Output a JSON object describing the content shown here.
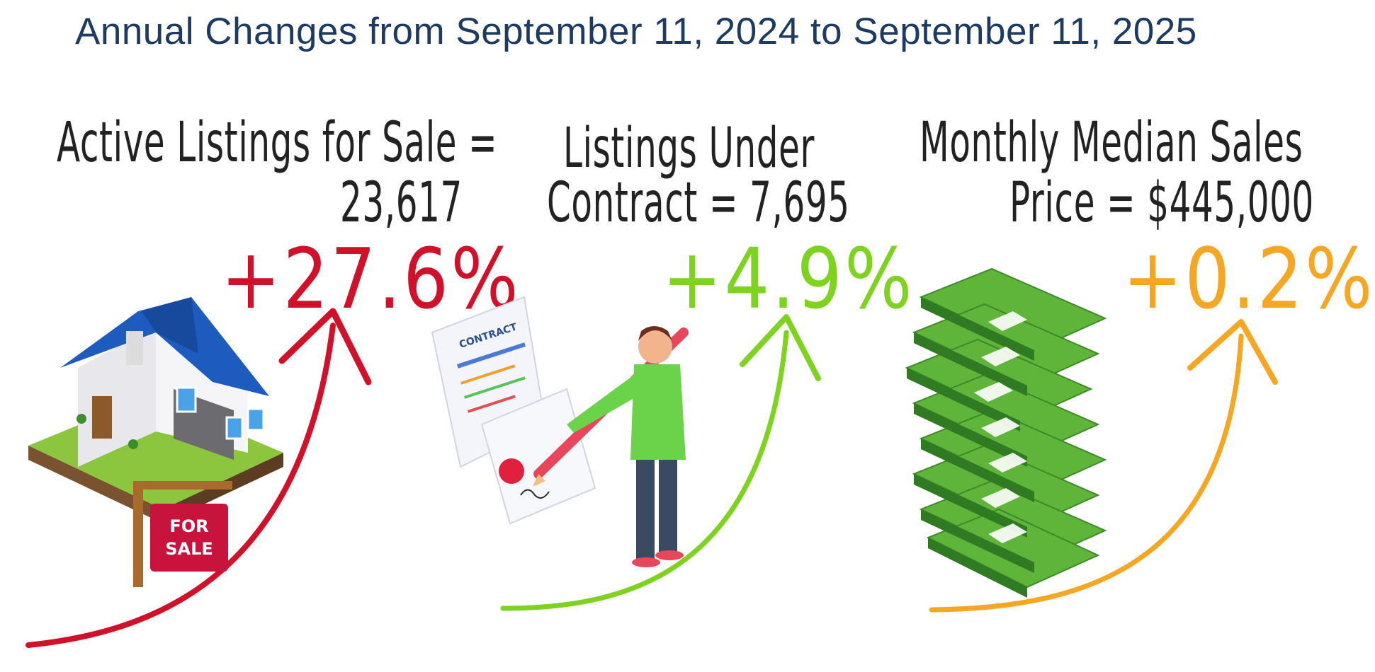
{
  "title": "Annual Changes from September 11, 2024 to September 11, 2025",
  "colors": {
    "title": "#1d3a63",
    "listings": "#d1102a",
    "contract": "#7ed321",
    "price": "#f5a623"
  },
  "metrics": [
    {
      "line1": "Active Listings for Sale =",
      "line2": "23,617",
      "change": "+27.6%",
      "change_value": 27.6,
      "icon": "house-for-sale-icon"
    },
    {
      "line1": "Listings Under",
      "line2": "Contract = 7,695",
      "change": "+4.9%",
      "change_value": 4.9,
      "icon": "contract-signing-icon"
    },
    {
      "line1": "Monthly Median  Sales",
      "line2": "Price = $445,000",
      "change": "+0.2%",
      "change_value": 0.2,
      "icon": "money-stack-icon"
    }
  ],
  "sign_text": {
    "line1": "FOR",
    "line2": "SALE"
  },
  "contract_label": "CONTRACT"
}
